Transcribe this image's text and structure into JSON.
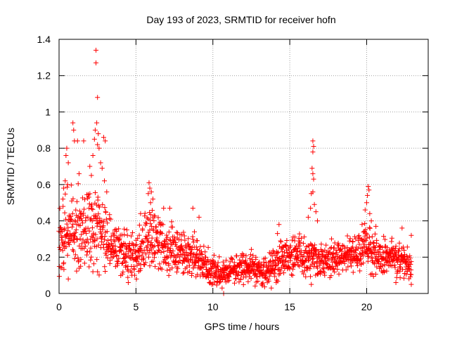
{
  "chart_data": {
    "type": "scatter",
    "title": "Day 193 of 2023, SRMTID for receiver hofn",
    "xlabel": "GPS time / hours",
    "ylabel": "SRMTID / TECUs",
    "xlim": [
      0,
      24
    ],
    "ylim": [
      0,
      1.4
    ],
    "xticks": [
      0,
      5,
      10,
      15,
      20
    ],
    "xtick_labels": [
      "0",
      "5",
      "10",
      "15",
      "20"
    ],
    "yticks": [
      0,
      0.2,
      0.4,
      0.6,
      0.8,
      1,
      1.2,
      1.4
    ],
    "ytick_labels": [
      "0",
      "0.2",
      "0.4",
      "0.6",
      "0.8",
      "1",
      "1.2",
      "1.4"
    ],
    "grid": true,
    "marker": "+",
    "series": [
      {
        "name": "SRMTID",
        "color": "#ff0000",
        "trend": {
          "x": [
            0,
            0.5,
            1,
            1.5,
            2,
            2.5,
            3,
            3.5,
            4,
            4.5,
            5,
            5.5,
            6,
            6.5,
            7,
            7.5,
            8,
            8.5,
            9,
            9.5,
            10,
            10.5,
            11,
            11.5,
            12,
            12.5,
            13,
            13.5,
            14,
            14.5,
            15,
            15.5,
            16,
            16.5,
            17,
            17.5,
            18,
            18.5,
            19,
            19.5,
            20,
            20.5,
            21,
            21.5,
            22,
            22.5,
            22.9
          ],
          "y": [
            0.3,
            0.36,
            0.34,
            0.33,
            0.38,
            0.36,
            0.3,
            0.26,
            0.24,
            0.22,
            0.2,
            0.3,
            0.32,
            0.27,
            0.25,
            0.23,
            0.22,
            0.21,
            0.2,
            0.16,
            0.13,
            0.11,
            0.12,
            0.14,
            0.15,
            0.14,
            0.12,
            0.12,
            0.15,
            0.2,
            0.2,
            0.22,
            0.2,
            0.22,
            0.17,
            0.18,
            0.2,
            0.21,
            0.22,
            0.24,
            0.28,
            0.22,
            0.2,
            0.21,
            0.19,
            0.18,
            0.16
          ]
        },
        "spread": {
          "x": [
            0,
            1,
            2,
            3,
            4,
            5,
            6,
            7,
            8,
            9,
            10,
            11,
            12,
            13,
            14,
            15,
            16,
            17,
            18,
            19,
            20,
            21,
            22,
            23
          ],
          "y": [
            0.14,
            0.16,
            0.16,
            0.14,
            0.1,
            0.1,
            0.12,
            0.1,
            0.09,
            0.08,
            0.06,
            0.05,
            0.06,
            0.06,
            0.07,
            0.08,
            0.08,
            0.07,
            0.07,
            0.07,
            0.09,
            0.07,
            0.07,
            0.07
          ]
        },
        "outliers": [
          {
            "x": 2.4,
            "y": 1.34
          },
          {
            "x": 2.4,
            "y": 1.27
          },
          {
            "x": 2.5,
            "y": 1.08
          },
          {
            "x": 2.45,
            "y": 0.94
          },
          {
            "x": 2.35,
            "y": 0.9
          },
          {
            "x": 2.55,
            "y": 0.88
          },
          {
            "x": 2.3,
            "y": 0.85
          },
          {
            "x": 2.5,
            "y": 0.82
          },
          {
            "x": 2.6,
            "y": 0.8
          },
          {
            "x": 2.2,
            "y": 0.76
          },
          {
            "x": 2.7,
            "y": 0.72
          },
          {
            "x": 2.8,
            "y": 0.69
          },
          {
            "x": 2.9,
            "y": 0.86
          },
          {
            "x": 3.0,
            "y": 0.84
          },
          {
            "x": 2.0,
            "y": 0.7
          },
          {
            "x": 2.1,
            "y": 0.65
          },
          {
            "x": 0.9,
            "y": 0.94
          },
          {
            "x": 0.95,
            "y": 0.9
          },
          {
            "x": 1.0,
            "y": 0.84
          },
          {
            "x": 1.2,
            "y": 0.84
          },
          {
            "x": 1.6,
            "y": 0.84
          },
          {
            "x": 0.5,
            "y": 0.8
          },
          {
            "x": 0.45,
            "y": 0.76
          },
          {
            "x": 0.6,
            "y": 0.72
          },
          {
            "x": 1.3,
            "y": 0.66
          },
          {
            "x": 0.4,
            "y": 0.62
          },
          {
            "x": 0.55,
            "y": 0.6
          },
          {
            "x": 0.3,
            "y": 0.58
          },
          {
            "x": 0.25,
            "y": 0.52
          },
          {
            "x": 2.95,
            "y": 0.62
          },
          {
            "x": 3.1,
            "y": 0.56
          },
          {
            "x": 2.2,
            "y": 0.12
          },
          {
            "x": 2.5,
            "y": 0.12
          },
          {
            "x": 0.6,
            "y": 0.08
          },
          {
            "x": 1.4,
            "y": 0.15
          },
          {
            "x": 5.85,
            "y": 0.61
          },
          {
            "x": 5.9,
            "y": 0.58
          },
          {
            "x": 6.0,
            "y": 0.56
          },
          {
            "x": 5.8,
            "y": 0.55
          },
          {
            "x": 6.1,
            "y": 0.52
          },
          {
            "x": 5.95,
            "y": 0.5
          },
          {
            "x": 5.3,
            "y": 0.44
          },
          {
            "x": 6.8,
            "y": 0.47
          },
          {
            "x": 7.2,
            "y": 0.47
          },
          {
            "x": 8.7,
            "y": 0.47
          },
          {
            "x": 9.1,
            "y": 0.42
          },
          {
            "x": 4.5,
            "y": 0.06
          },
          {
            "x": 10.7,
            "y": 0.0
          },
          {
            "x": 10.6,
            "y": 0.03
          },
          {
            "x": 16.5,
            "y": 0.84
          },
          {
            "x": 16.55,
            "y": 0.81
          },
          {
            "x": 16.5,
            "y": 0.78
          },
          {
            "x": 16.45,
            "y": 0.69
          },
          {
            "x": 16.5,
            "y": 0.66
          },
          {
            "x": 16.55,
            "y": 0.63
          },
          {
            "x": 16.5,
            "y": 0.56
          },
          {
            "x": 16.4,
            "y": 0.55
          },
          {
            "x": 16.35,
            "y": 0.47
          },
          {
            "x": 16.6,
            "y": 0.49
          },
          {
            "x": 16.7,
            "y": 0.45
          },
          {
            "x": 16.2,
            "y": 0.42
          },
          {
            "x": 16.8,
            "y": 0.4
          },
          {
            "x": 14.2,
            "y": 0.33
          },
          {
            "x": 14.3,
            "y": 0.38
          },
          {
            "x": 20.1,
            "y": 0.59
          },
          {
            "x": 20.15,
            "y": 0.57
          },
          {
            "x": 20.05,
            "y": 0.54
          },
          {
            "x": 20.0,
            "y": 0.5
          },
          {
            "x": 19.9,
            "y": 0.46
          },
          {
            "x": 20.2,
            "y": 0.44
          },
          {
            "x": 20.3,
            "y": 0.4
          },
          {
            "x": 19.7,
            "y": 0.38
          },
          {
            "x": 20.6,
            "y": 0.37
          },
          {
            "x": 22.3,
            "y": 0.36
          },
          {
            "x": 22.9,
            "y": 0.32
          },
          {
            "x": 22.9,
            "y": 0.05
          },
          {
            "x": 21.9,
            "y": 0.06
          },
          {
            "x": 13.8,
            "y": 0.03
          },
          {
            "x": 16.4,
            "y": 0.05
          }
        ]
      }
    ]
  }
}
